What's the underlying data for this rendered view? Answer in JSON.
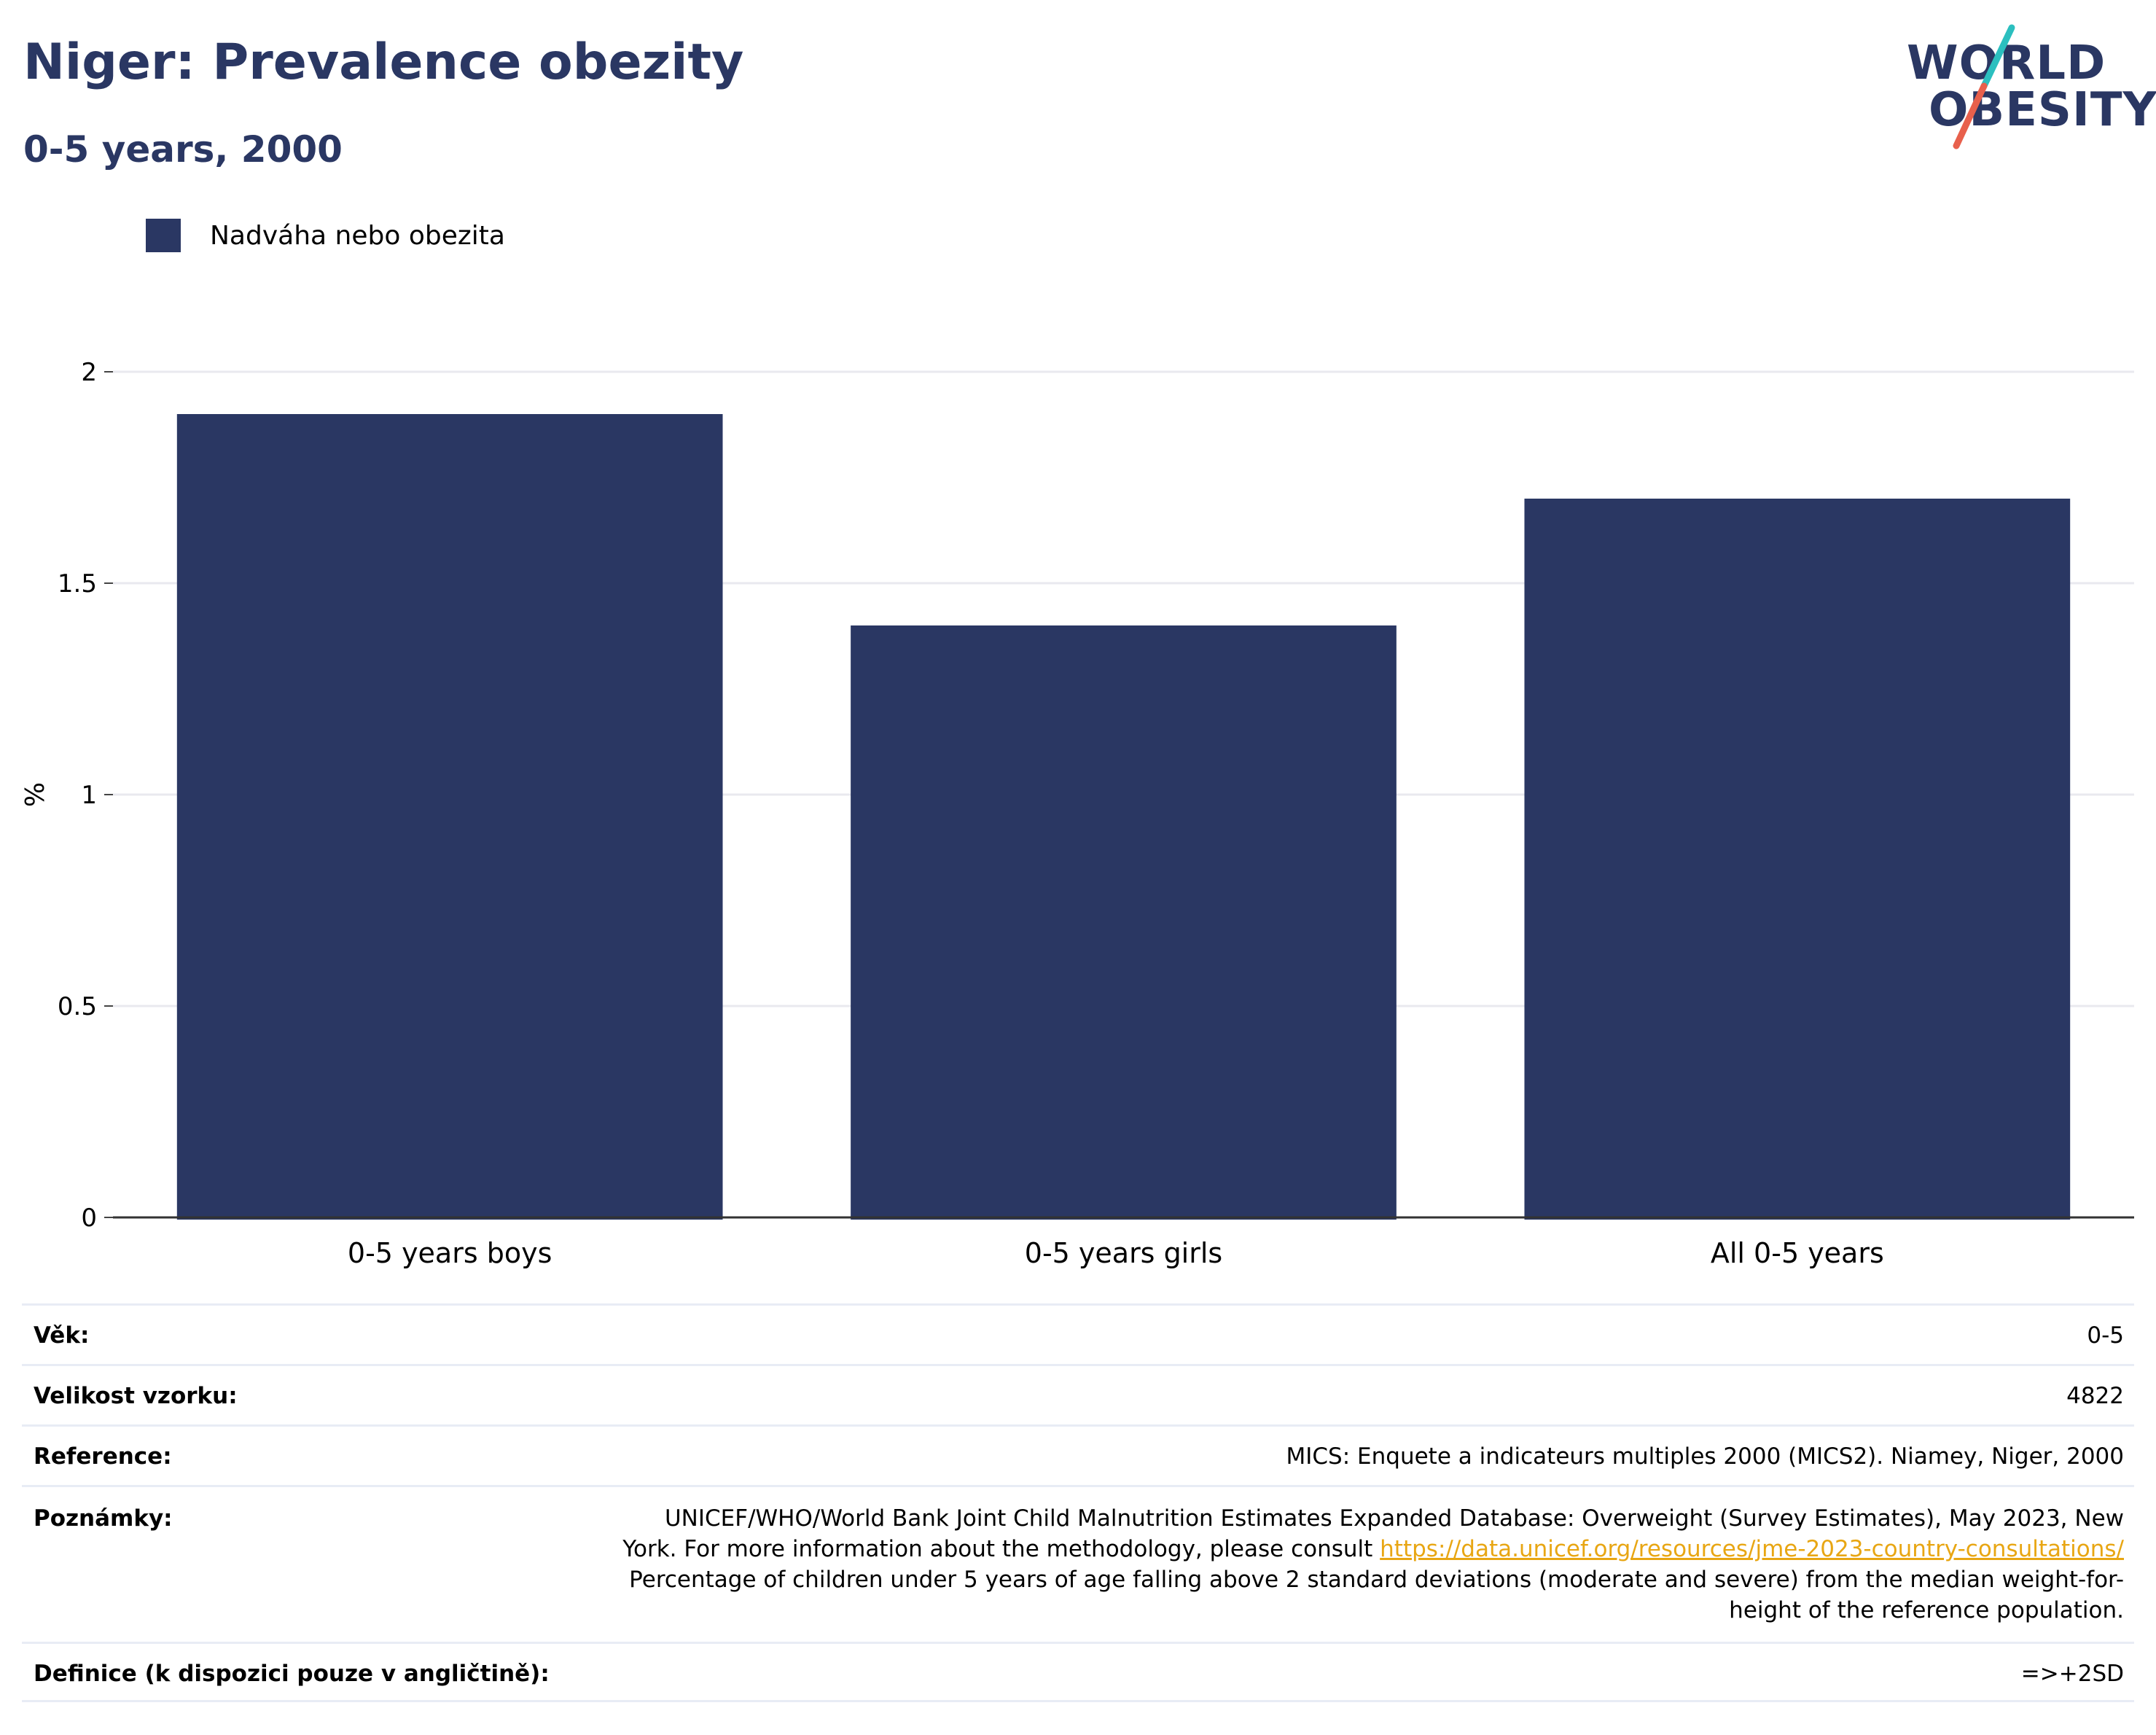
{
  "header": {
    "title": "Niger: Prevalence obezity",
    "subtitle": "0-5 years, 2000"
  },
  "logo": {
    "line1": "WORLD",
    "line2": "OBESITY",
    "colors": {
      "text": "#2a3763",
      "slash_top": "#2bbfbf",
      "slash_bottom": "#e8604c"
    }
  },
  "legend": {
    "label": "Nadváha nebo obezita",
    "color": "#2a3763"
  },
  "chart_data": {
    "type": "bar",
    "categories": [
      "0-5 years boys",
      "0-5 years girls",
      "All 0-5 years"
    ],
    "series": [
      {
        "name": "Nadváha nebo obezita",
        "values": [
          1.9,
          1.4,
          1.7
        ],
        "color": "#2a3763"
      }
    ],
    "ylabel": "%",
    "ylim": [
      0,
      2
    ],
    "yticks": [
      0,
      0.5,
      1,
      1.5,
      2
    ],
    "ytick_labels": [
      "0",
      "0.5",
      "1",
      "1.5",
      "2"
    ],
    "grid": true,
    "legend_position": "top-left"
  },
  "info": {
    "age": {
      "label": "Věk:",
      "value": "0-5"
    },
    "sample_size": {
      "label": "Velikost vzorku:",
      "value": "4822"
    },
    "reference": {
      "label": "Reference:",
      "value": "MICS: Enquete a indicateurs multiples 2000 (MICS2). Niamey, Niger, 2000"
    },
    "notes": {
      "label": "Poznámky:",
      "text_before": "UNICEF/WHO/World Bank Joint Child Malnutrition Estimates Expanded Database: Overweight (Survey Estimates), May 2023, New York. For more information about the methodology, please consult ",
      "link": "https://data.unicef.org/resources/jme-2023-country-consultations/",
      "text_after": " Percentage of children under 5 years of age falling above 2 standard deviations (moderate and severe) from the median weight-for-height of the reference population."
    },
    "definition": {
      "label": "Definice (k dispozici pouze v angličtině):",
      "value": "=>+2SD"
    }
  }
}
